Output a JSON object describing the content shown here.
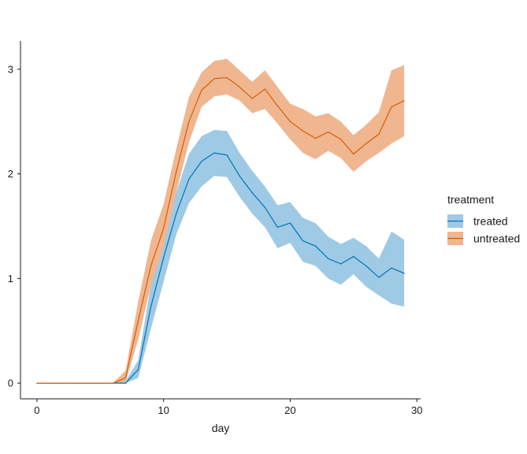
{
  "chart_data": {
    "type": "area",
    "xlabel": "day",
    "ylabel": "",
    "xlim": [
      -1.3,
      30.3
    ],
    "ylim": [
      -0.15,
      3.27
    ],
    "x_ticks": [
      0,
      10,
      20,
      30
    ],
    "y_ticks": [
      0,
      1,
      2,
      3
    ],
    "grid": false,
    "legend": {
      "title": "treatment",
      "position": "right"
    },
    "x": [
      0,
      1,
      2,
      3,
      4,
      5,
      6,
      7,
      8,
      9,
      10,
      11,
      12,
      13,
      14,
      15,
      16,
      17,
      18,
      19,
      20,
      21,
      22,
      23,
      24,
      25,
      26,
      27,
      28,
      29
    ],
    "series": [
      {
        "name": "treated",
        "color": "#0072B2",
        "fill": "#9ECAE6",
        "values": [
          0,
          0,
          0,
          0,
          0,
          0,
          0,
          0.0,
          0.13,
          0.73,
          1.2,
          1.62,
          1.95,
          2.12,
          2.2,
          2.18,
          1.98,
          1.82,
          1.68,
          1.49,
          1.53,
          1.36,
          1.31,
          1.19,
          1.14,
          1.21,
          1.12,
          1.01,
          1.1,
          1.05
        ],
        "lower": [
          0,
          0,
          0,
          0,
          0,
          0,
          0,
          0.0,
          0.05,
          0.52,
          0.97,
          1.42,
          1.72,
          1.88,
          1.98,
          1.97,
          1.78,
          1.62,
          1.49,
          1.29,
          1.34,
          1.16,
          1.12,
          1.0,
          0.94,
          1.04,
          0.92,
          0.84,
          0.76,
          0.73
        ],
        "upper": [
          0,
          0,
          0,
          0,
          0,
          0,
          0,
          0.02,
          0.22,
          0.94,
          1.43,
          1.82,
          2.19,
          2.36,
          2.42,
          2.41,
          2.2,
          2.03,
          1.88,
          1.7,
          1.73,
          1.58,
          1.53,
          1.4,
          1.33,
          1.39,
          1.31,
          1.19,
          1.45,
          1.37
        ]
      },
      {
        "name": "untreated",
        "color": "#D55E00",
        "fill": "#F0B690",
        "values": [
          0,
          0,
          0,
          0,
          0,
          0,
          0,
          0.05,
          0.6,
          1.12,
          1.48,
          2.02,
          2.5,
          2.8,
          2.91,
          2.92,
          2.83,
          2.72,
          2.81,
          2.65,
          2.5,
          2.41,
          2.34,
          2.4,
          2.33,
          2.19,
          2.29,
          2.38,
          2.64,
          2.7
        ],
        "lower": [
          0,
          0,
          0,
          0,
          0,
          0,
          0,
          0.01,
          0.42,
          0.93,
          1.3,
          1.82,
          2.3,
          2.64,
          2.74,
          2.76,
          2.7,
          2.58,
          2.62,
          2.48,
          2.33,
          2.2,
          2.14,
          2.22,
          2.15,
          2.02,
          2.12,
          2.2,
          2.29,
          2.36
        ],
        "upper": [
          0,
          0,
          0,
          0,
          0,
          0,
          0,
          0.12,
          0.78,
          1.36,
          1.71,
          2.24,
          2.73,
          2.97,
          3.08,
          3.1,
          2.99,
          2.88,
          2.99,
          2.83,
          2.67,
          2.62,
          2.55,
          2.58,
          2.5,
          2.37,
          2.47,
          2.59,
          2.99,
          3.04
        ]
      }
    ]
  }
}
